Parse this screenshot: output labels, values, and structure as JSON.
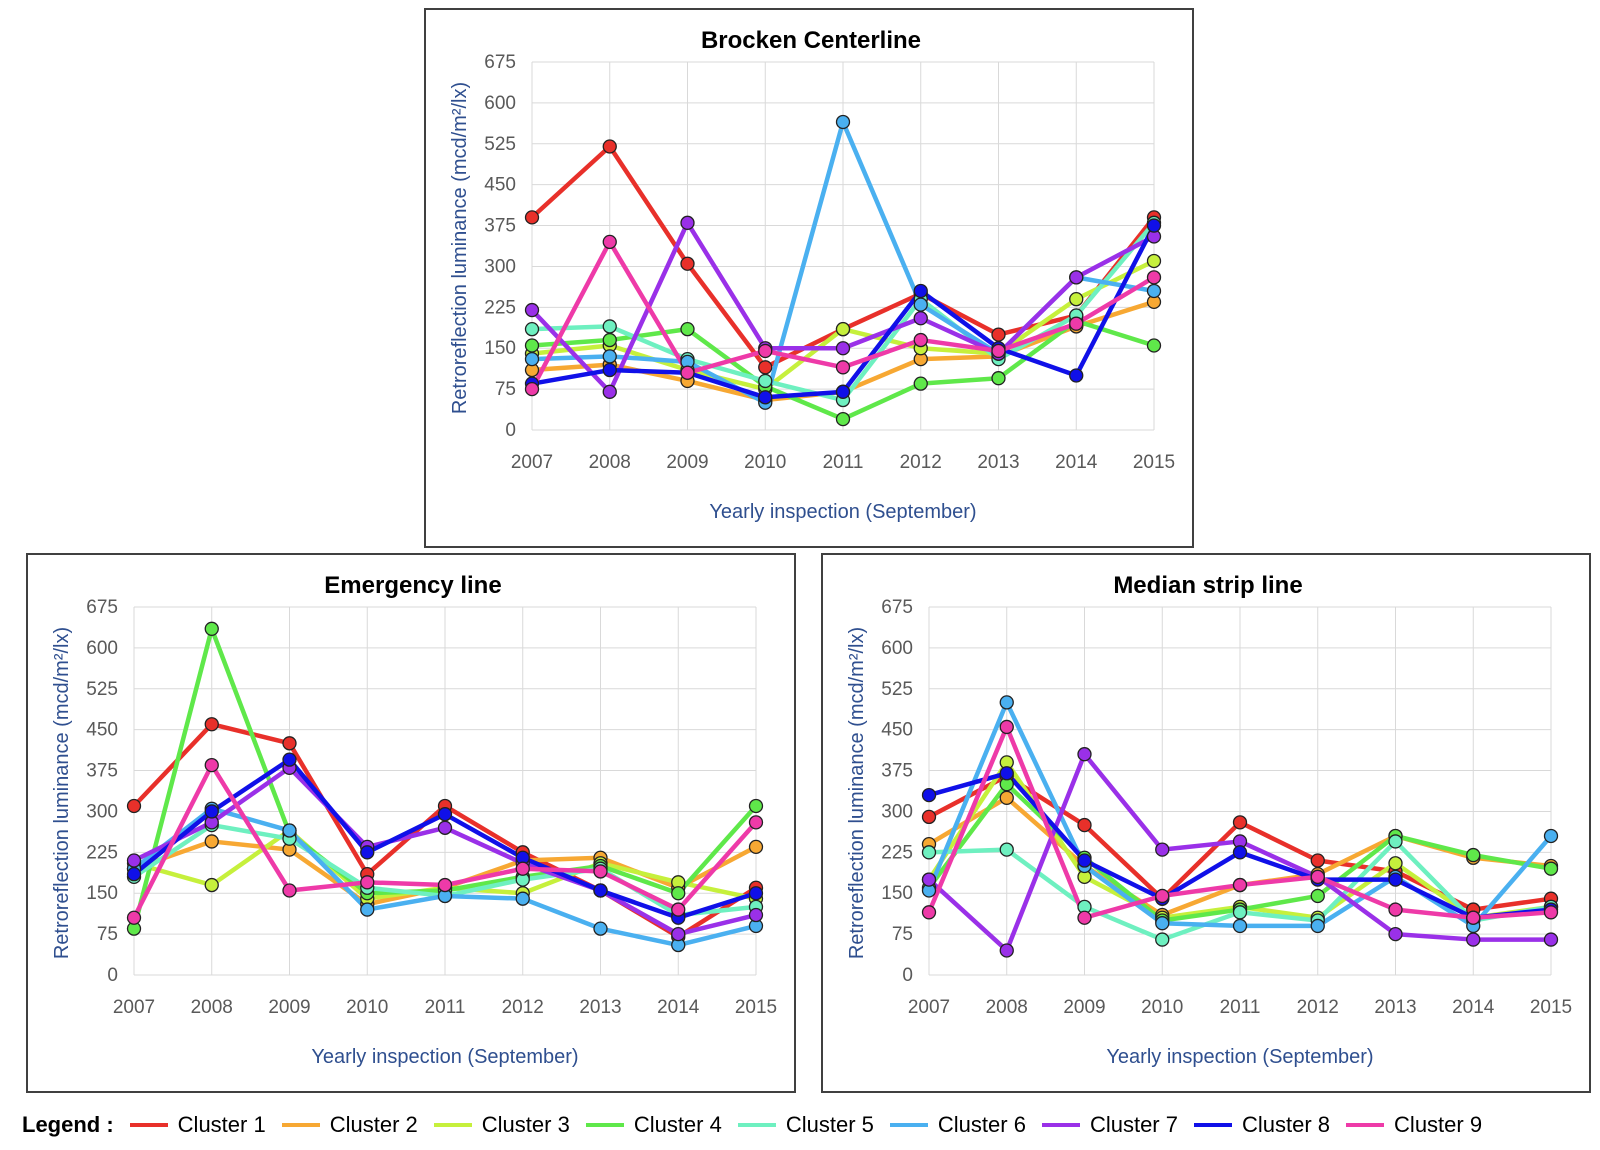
{
  "legend": {
    "title": "Legend :",
    "items": [
      {
        "label": "Cluster 1",
        "color": "#e8302a"
      },
      {
        "label": "Cluster 2",
        "color": "#f7a833"
      },
      {
        "label": "Cluster 3",
        "color": "#c6f03c"
      },
      {
        "label": "Cluster 4",
        "color": "#5fe84a"
      },
      {
        "label": "Cluster 5",
        "color": "#6ef0c0"
      },
      {
        "label": "Cluster 6",
        "color": "#4ab0f0"
      },
      {
        "label": "Cluster 7",
        "color": "#9a30e8"
      },
      {
        "label": "Cluster 8",
        "color": "#1010e8"
      },
      {
        "label": "Cluster 9",
        "color": "#ee3aa8"
      }
    ]
  },
  "chart_data": [
    {
      "type": "line",
      "title": "Brocken Centerline",
      "xlabel": "Yearly inspection (September)",
      "ylabel": "Retroreflection luminance (mcd/m²/lx)",
      "categories": [
        "2007",
        "2008",
        "2009",
        "2010",
        "2011",
        "2012",
        "2013",
        "2014",
        "2015"
      ],
      "ylim": [
        0,
        675
      ],
      "yticks": [
        0,
        75,
        150,
        225,
        300,
        375,
        450,
        525,
        600,
        675
      ],
      "grid": true,
      "series": [
        {
          "name": "Cluster 1",
          "values": [
            390,
            520,
            305,
            115,
            185,
            250,
            175,
            210,
            390
          ]
        },
        {
          "name": "Cluster 2",
          "values": [
            110,
            120,
            90,
            55,
            70,
            130,
            135,
            190,
            235
          ]
        },
        {
          "name": "Cluster 3",
          "values": [
            140,
            155,
            110,
            75,
            185,
            150,
            140,
            240,
            310
          ]
        },
        {
          "name": "Cluster 4",
          "values": [
            155,
            165,
            185,
            80,
            20,
            85,
            95,
            200,
            155
          ]
        },
        {
          "name": "Cluster 5",
          "values": [
            185,
            190,
            130,
            90,
            55,
            240,
            130,
            210,
            380
          ]
        },
        {
          "name": "Cluster 6",
          "values": [
            130,
            135,
            125,
            50,
            565,
            230,
            140,
            280,
            255
          ]
        },
        {
          "name": "Cluster 7",
          "values": [
            220,
            70,
            380,
            150,
            150,
            205,
            140,
            280,
            355
          ]
        },
        {
          "name": "Cluster 8",
          "values": [
            85,
            110,
            105,
            60,
            70,
            255,
            150,
            100,
            375
          ]
        },
        {
          "name": "Cluster 9",
          "values": [
            75,
            345,
            105,
            145,
            115,
            165,
            145,
            195,
            280
          ]
        }
      ]
    },
    {
      "type": "line",
      "title": "Emergency line",
      "xlabel": "Yearly inspection (September)",
      "ylabel": "Retroreflection luminance (mcd/m²/lx)",
      "categories": [
        "2007",
        "2008",
        "2009",
        "2010",
        "2011",
        "2012",
        "2013",
        "2014",
        "2015"
      ],
      "ylim": [
        0,
        675
      ],
      "yticks": [
        0,
        75,
        150,
        225,
        300,
        375,
        450,
        525,
        600,
        675
      ],
      "grid": true,
      "series": [
        {
          "name": "Cluster 1",
          "values": [
            310,
            460,
            425,
            185,
            310,
            225,
            155,
            70,
            160
          ]
        },
        {
          "name": "Cluster 2",
          "values": [
            195,
            245,
            230,
            130,
            160,
            210,
            215,
            160,
            235
          ]
        },
        {
          "name": "Cluster 3",
          "values": [
            205,
            165,
            265,
            140,
            160,
            150,
            205,
            170,
            140
          ]
        },
        {
          "name": "Cluster 4",
          "values": [
            85,
            635,
            260,
            150,
            155,
            180,
            200,
            150,
            310
          ]
        },
        {
          "name": "Cluster 5",
          "values": [
            180,
            275,
            250,
            160,
            145,
            175,
            195,
            110,
            125
          ]
        },
        {
          "name": "Cluster 6",
          "values": [
            195,
            305,
            265,
            120,
            145,
            140,
            85,
            55,
            90
          ]
        },
        {
          "name": "Cluster 7",
          "values": [
            210,
            280,
            380,
            235,
            270,
            205,
            155,
            75,
            110
          ]
        },
        {
          "name": "Cluster 8",
          "values": [
            185,
            300,
            395,
            225,
            295,
            215,
            155,
            105,
            150
          ]
        },
        {
          "name": "Cluster 9",
          "values": [
            105,
            385,
            155,
            170,
            165,
            195,
            190,
            120,
            280
          ]
        }
      ]
    },
    {
      "type": "line",
      "title": "Median strip line",
      "xlabel": "Yearly inspection (September)",
      "ylabel": "Retroreflection luminance (mcd/m²/lx)",
      "categories": [
        "2007",
        "2008",
        "2009",
        "2010",
        "2011",
        "2012",
        "2013",
        "2014",
        "2015"
      ],
      "ylim": [
        0,
        675
      ],
      "yticks": [
        0,
        75,
        150,
        225,
        300,
        375,
        450,
        525,
        600,
        675
      ],
      "grid": true,
      "series": [
        {
          "name": "Cluster 1",
          "values": [
            290,
            365,
            275,
            140,
            280,
            210,
            190,
            120,
            140
          ]
        },
        {
          "name": "Cluster 2",
          "values": [
            240,
            325,
            200,
            110,
            165,
            185,
            255,
            215,
            200
          ]
        },
        {
          "name": "Cluster 3",
          "values": [
            175,
            390,
            180,
            105,
            125,
            105,
            205,
            105,
            125
          ]
        },
        {
          "name": "Cluster 4",
          "values": [
            160,
            350,
            215,
            100,
            120,
            145,
            255,
            220,
            195
          ]
        },
        {
          "name": "Cluster 5",
          "values": [
            225,
            230,
            125,
            65,
            115,
            100,
            245,
            100,
            125
          ]
        },
        {
          "name": "Cluster 6",
          "values": [
            155,
            500,
            200,
            95,
            90,
            90,
            180,
            90,
            255
          ]
        },
        {
          "name": "Cluster 7",
          "values": [
            175,
            45,
            405,
            230,
            245,
            180,
            75,
            65,
            65
          ]
        },
        {
          "name": "Cluster 8",
          "values": [
            330,
            370,
            210,
            140,
            225,
            175,
            175,
            105,
            120
          ]
        },
        {
          "name": "Cluster 9",
          "values": [
            115,
            455,
            105,
            145,
            165,
            180,
            120,
            105,
            115
          ]
        }
      ]
    }
  ]
}
